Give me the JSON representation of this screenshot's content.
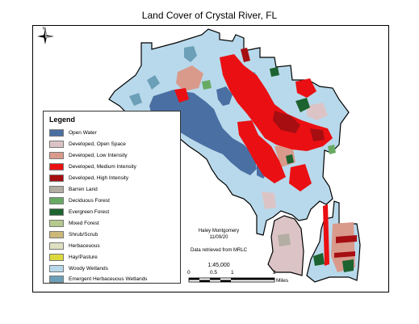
{
  "title": "Land Cover of Crystal River, FL",
  "north_label": "N",
  "legend": {
    "title": "Legend",
    "items": [
      {
        "label": "Open Water",
        "color": "#4a6fa3"
      },
      {
        "label": "Developed, Open Space",
        "color": "#dcc4c6"
      },
      {
        "label": "Developed, Low Intensity",
        "color": "#d99a8c"
      },
      {
        "label": "Developed, Medium Intensity",
        "color": "#ea0f12"
      },
      {
        "label": "Developed, High Intensity",
        "color": "#a60e12"
      },
      {
        "label": "Barren Land",
        "color": "#b3ada3"
      },
      {
        "label": "Deciduous Forest",
        "color": "#68aa63"
      },
      {
        "label": "Evergreen Forest",
        "color": "#1c6330"
      },
      {
        "label": "Mixed Forest",
        "color": "#b5c98e"
      },
      {
        "label": "Shrub/Scrub",
        "color": "#ccb879"
      },
      {
        "label": "Herbaceuous",
        "color": "#dfdfc2"
      },
      {
        "label": "Hay/Pasture",
        "color": "#dcd93d"
      },
      {
        "label": "Woody Wetlands",
        "color": "#b8d9eb"
      },
      {
        "label": "Emergent Herbaceuous Wetlands",
        "color": "#6c9fb8"
      }
    ]
  },
  "credits": {
    "author": "Haley Montgomery",
    "date": "11/09/20",
    "source": "Data retrieved from MRLC"
  },
  "scale": {
    "ratio": "1:45,000",
    "ticks": [
      "0",
      "0.5",
      "1",
      "2"
    ],
    "units": "Miles"
  }
}
